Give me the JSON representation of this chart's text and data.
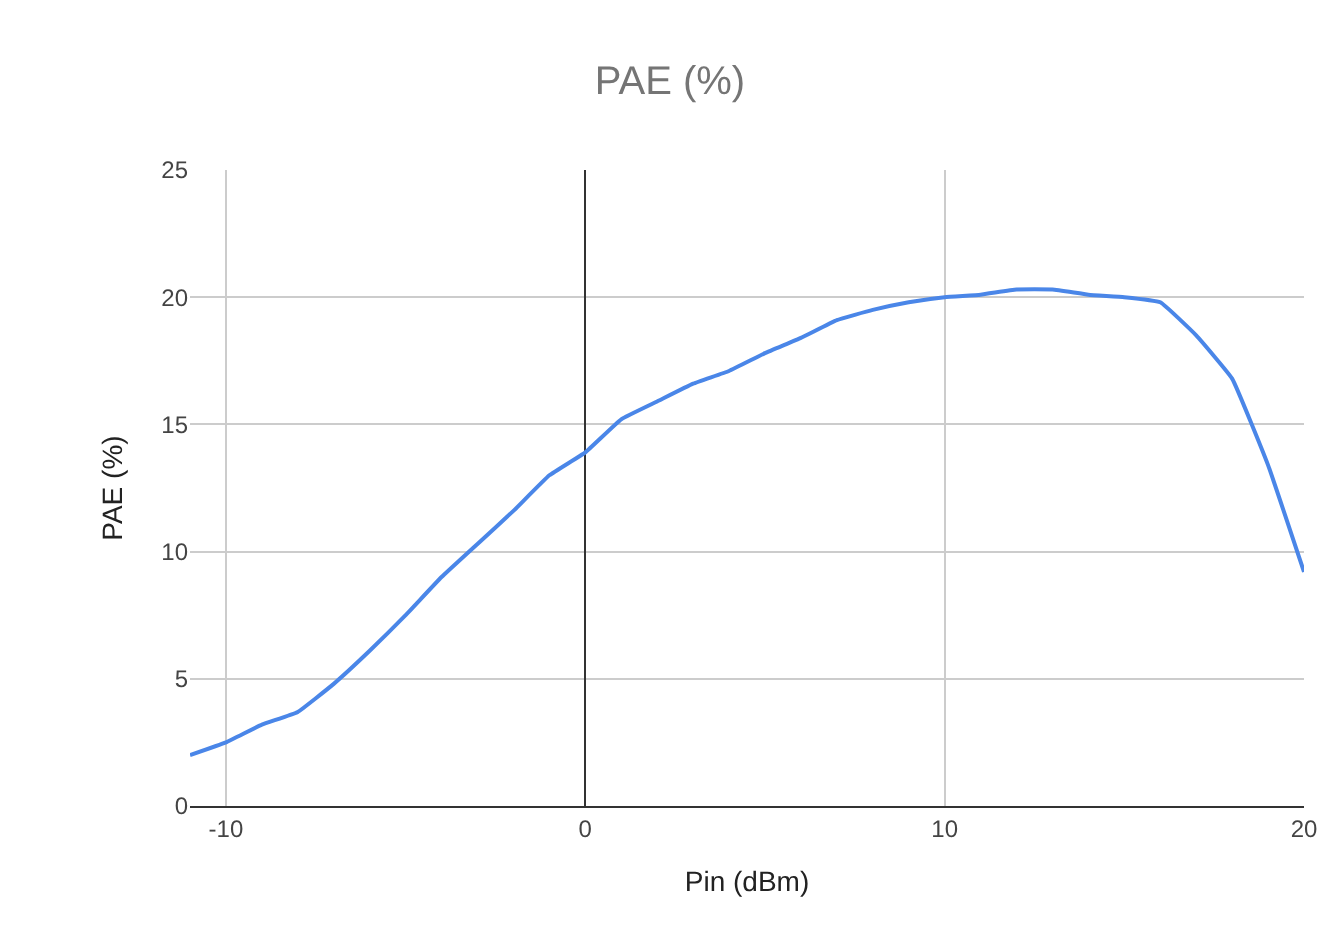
{
  "chart_data": {
    "type": "line",
    "title": "PAE (%)",
    "xlabel": "Pin (dBm)",
    "ylabel": "PAE (%)",
    "x": [
      -11,
      -10,
      -9,
      -8,
      -7,
      -6,
      -5,
      -4,
      -3,
      -2,
      -1,
      0,
      1,
      2,
      3,
      4,
      5,
      6,
      7,
      8,
      9,
      10,
      11,
      12,
      13,
      14,
      15,
      16,
      17,
      18,
      19,
      20
    ],
    "series": [
      {
        "color": "#4a86e8",
        "values": [
          2.0,
          2.5,
          3.2,
          3.7,
          4.8,
          6.1,
          7.5,
          9.0,
          10.3,
          11.6,
          13.0,
          13.9,
          15.2,
          15.9,
          16.6,
          17.1,
          17.8,
          18.4,
          19.1,
          19.5,
          19.8,
          20.0,
          20.1,
          20.3,
          20.3,
          20.1,
          20.0,
          19.8,
          18.5,
          16.8,
          13.4,
          9.2
        ]
      }
    ],
    "xlim": [
      -11,
      20
    ],
    "xticks": [
      -10,
      0,
      10,
      20
    ],
    "ylim": [
      0,
      25
    ],
    "yticks": [
      0,
      5,
      10,
      15,
      20,
      25
    ],
    "grid": true,
    "marker": "none",
    "line_style": "solid"
  }
}
